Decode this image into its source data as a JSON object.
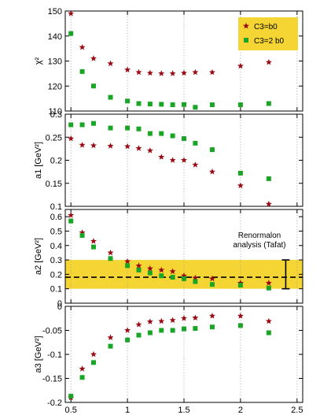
{
  "chart_data": [
    {
      "type": "scatter",
      "ylabel": "χ²",
      "ylim": [
        110,
        150
      ],
      "yticks": [
        "110",
        "120",
        "130",
        "140",
        "150"
      ],
      "xlim": [
        0.45,
        2.55
      ],
      "grid": "vertical dotted",
      "legend": {
        "placement": "top-right",
        "entries": [
          "C3=b0",
          "C3=2 b0"
        ]
      },
      "series": [
        {
          "name": "C3=b0",
          "marker": "star",
          "color": "#9b0a14",
          "x": [
            0.5,
            0.6,
            0.7,
            0.85,
            1.0,
            1.1,
            1.2,
            1.3,
            1.4,
            1.5,
            1.6,
            1.75,
            2.0,
            2.25
          ],
          "values": [
            149,
            135.5,
            131,
            129,
            126.5,
            125.5,
            125.2,
            125,
            125,
            125.2,
            125.5,
            125.5,
            128,
            129.5
          ]
        },
        {
          "name": "C3=2 b0",
          "marker": "square",
          "color": "#1aa526",
          "x": [
            0.5,
            0.6,
            0.7,
            0.85,
            1.0,
            1.1,
            1.2,
            1.3,
            1.4,
            1.5,
            1.6,
            1.75,
            2.0,
            2.25
          ],
          "values": [
            141,
            125.8,
            120,
            115.5,
            114,
            113,
            112.8,
            112.7,
            112.5,
            112.6,
            111.5,
            112.5,
            112.5,
            113
          ]
        }
      ]
    },
    {
      "type": "scatter",
      "ylabel": "a1 [GeV²]",
      "ylim": [
        0.1,
        0.3
      ],
      "yticks": [
        "0.1",
        "0.15",
        "0.2",
        "0.25",
        "0.3"
      ],
      "xlim": [
        0.45,
        2.55
      ],
      "grid": "vertical dotted",
      "series": [
        {
          "name": "C3=b0",
          "marker": "star",
          "color": "#9b0a14",
          "x": [
            0.5,
            0.6,
            0.7,
            0.85,
            1.0,
            1.1,
            1.2,
            1.3,
            1.4,
            1.5,
            1.6,
            1.75,
            2.0,
            2.25
          ],
          "values": [
            0.247,
            0.233,
            0.232,
            0.231,
            0.23,
            0.226,
            0.221,
            0.207,
            0.2,
            0.2,
            0.19,
            0.175,
            0.145,
            0.105
          ]
        },
        {
          "name": "C3=2 b0",
          "marker": "square",
          "color": "#1aa526",
          "x": [
            0.5,
            0.6,
            0.7,
            0.85,
            1.0,
            1.1,
            1.2,
            1.3,
            1.4,
            1.5,
            1.6,
            1.75,
            2.0,
            2.25
          ],
          "values": [
            0.277,
            0.277,
            0.28,
            0.27,
            0.27,
            0.268,
            0.258,
            0.258,
            0.253,
            0.247,
            0.237,
            0.223,
            0.172,
            0.16
          ]
        }
      ]
    },
    {
      "type": "scatter",
      "ylabel": "a2 [GeV²]",
      "ylim": [
        0,
        0.65
      ],
      "yticks": [
        "0",
        "0.1",
        "0.2",
        "0.3",
        "0.4",
        "0.5",
        "0.6"
      ],
      "xlim": [
        0.45,
        2.55
      ],
      "grid": "vertical dotted",
      "band": {
        "from": 0.1,
        "to": 0.3,
        "color": "#f5d533"
      },
      "reference_line": {
        "y": 0.18,
        "style": "dashed"
      },
      "annotation": {
        "lines": [
          "Renormalon",
          "analysis (Tafat)"
        ],
        "x": 2.4,
        "y": 0.2,
        "error": [
          0.1,
          0.3
        ]
      },
      "series": [
        {
          "name": "C3=b0",
          "marker": "star",
          "color": "#9b0a14",
          "x": [
            0.5,
            0.6,
            0.7,
            0.85,
            1.0,
            1.1,
            1.2,
            1.3,
            1.4,
            1.5,
            1.6,
            1.75,
            2.0,
            2.25
          ],
          "values": [
            0.61,
            0.49,
            0.43,
            0.35,
            0.29,
            0.26,
            0.24,
            0.23,
            0.22,
            0.19,
            0.175,
            0.17,
            0.14,
            0.14
          ]
        },
        {
          "name": "C3=2 b0",
          "marker": "square",
          "color": "#1aa526",
          "x": [
            0.5,
            0.6,
            0.7,
            0.85,
            1.0,
            1.1,
            1.2,
            1.3,
            1.4,
            1.5,
            1.6,
            1.75,
            2.0,
            2.25
          ],
          "values": [
            0.57,
            0.47,
            0.39,
            0.31,
            0.26,
            0.23,
            0.21,
            0.19,
            0.18,
            0.17,
            0.15,
            0.13,
            0.125,
            0.105
          ]
        }
      ]
    },
    {
      "type": "scatter",
      "ylabel": "a3 [GeV²]",
      "ylim": [
        -0.2,
        0
      ],
      "yticks": [
        "-0.2",
        "-0.15",
        "-0.1",
        "-0.05",
        "0"
      ],
      "xlim": [
        0.45,
        2.55
      ],
      "xticks": [
        "0.5",
        "1",
        "1.5",
        "2",
        "2.5"
      ],
      "grid": "vertical dotted",
      "series": [
        {
          "name": "C3=b0",
          "marker": "star",
          "color": "#9b0a14",
          "x": [
            0.5,
            0.6,
            0.7,
            0.85,
            1.0,
            1.1,
            1.2,
            1.3,
            1.4,
            1.5,
            1.6,
            1.75,
            2.0,
            2.25
          ],
          "values": [
            -0.19,
            -0.13,
            -0.1,
            -0.065,
            -0.05,
            -0.038,
            -0.032,
            -0.031,
            -0.029,
            -0.025,
            -0.024,
            -0.02,
            -0.02,
            -0.031
          ]
        },
        {
          "name": "C3=2 b0",
          "marker": "square",
          "color": "#1aa526",
          "x": [
            0.5,
            0.6,
            0.7,
            0.85,
            1.0,
            1.1,
            1.2,
            1.3,
            1.4,
            1.5,
            1.6,
            1.75,
            2.0,
            2.25
          ],
          "values": [
            -0.187,
            -0.148,
            -0.117,
            -0.083,
            -0.07,
            -0.06,
            -0.055,
            -0.05,
            -0.05,
            -0.047,
            -0.046,
            -0.043,
            -0.04,
            -0.055
          ]
        }
      ]
    }
  ]
}
